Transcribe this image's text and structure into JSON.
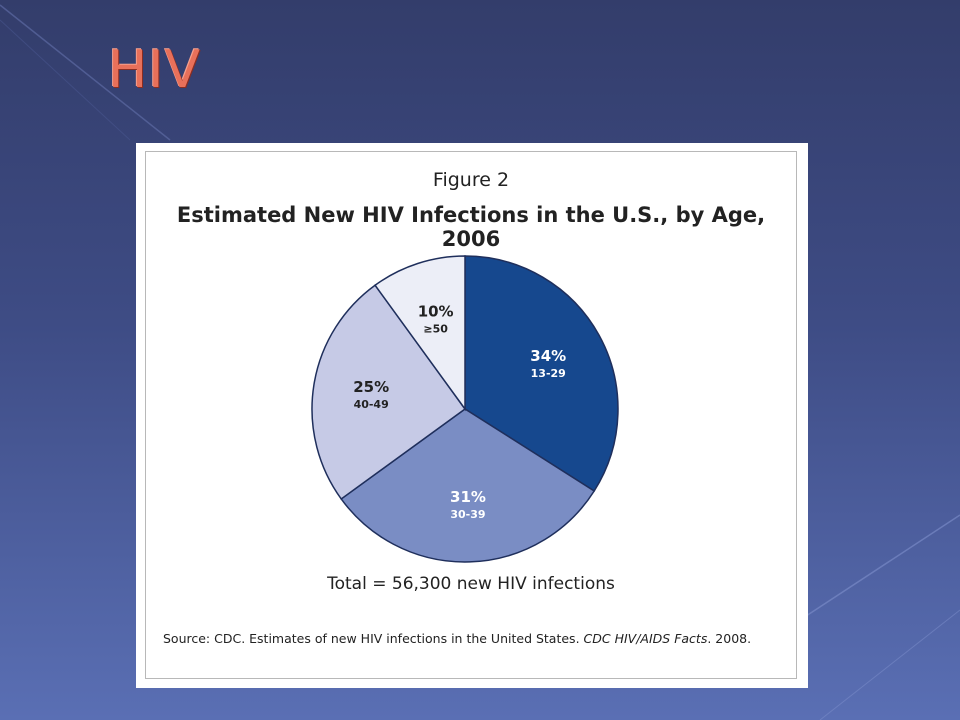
{
  "slide": {
    "title": "HIV"
  },
  "figure": {
    "label": "Figure 2",
    "total_text": "Total = 56,300 new HIV infections",
    "source_prefix": "Source: CDC. Estimates of new HIV infections in the United States. ",
    "source_journal": "CDC HIV/AIDS Facts",
    "source_suffix": ". 2008."
  },
  "chart_data": {
    "type": "pie",
    "title": "Estimated New HIV Infections in the U.S., by Age, 2006",
    "slices": [
      {
        "label": "13-29",
        "value": 34,
        "value_text": "34%",
        "color": "#16488e",
        "text_color": "#ffffff"
      },
      {
        "label": "30-39",
        "value": 31,
        "value_text": "31%",
        "color": "#7a8dc4",
        "text_color": "#ffffff"
      },
      {
        "label": "40-49",
        "value": 25,
        "value_text": "25%",
        "color": "#c6cae6",
        "text_color": "#222222"
      },
      {
        "label": "≥50",
        "value": 10,
        "value_text": "10%",
        "color": "#eceef7",
        "text_color": "#222222"
      }
    ],
    "start_angle_deg": 0,
    "direction": "clockwise"
  },
  "colors": {
    "title": "#e8705a",
    "background_top": "#333d6b",
    "background_bottom": "#5a6fb4"
  }
}
